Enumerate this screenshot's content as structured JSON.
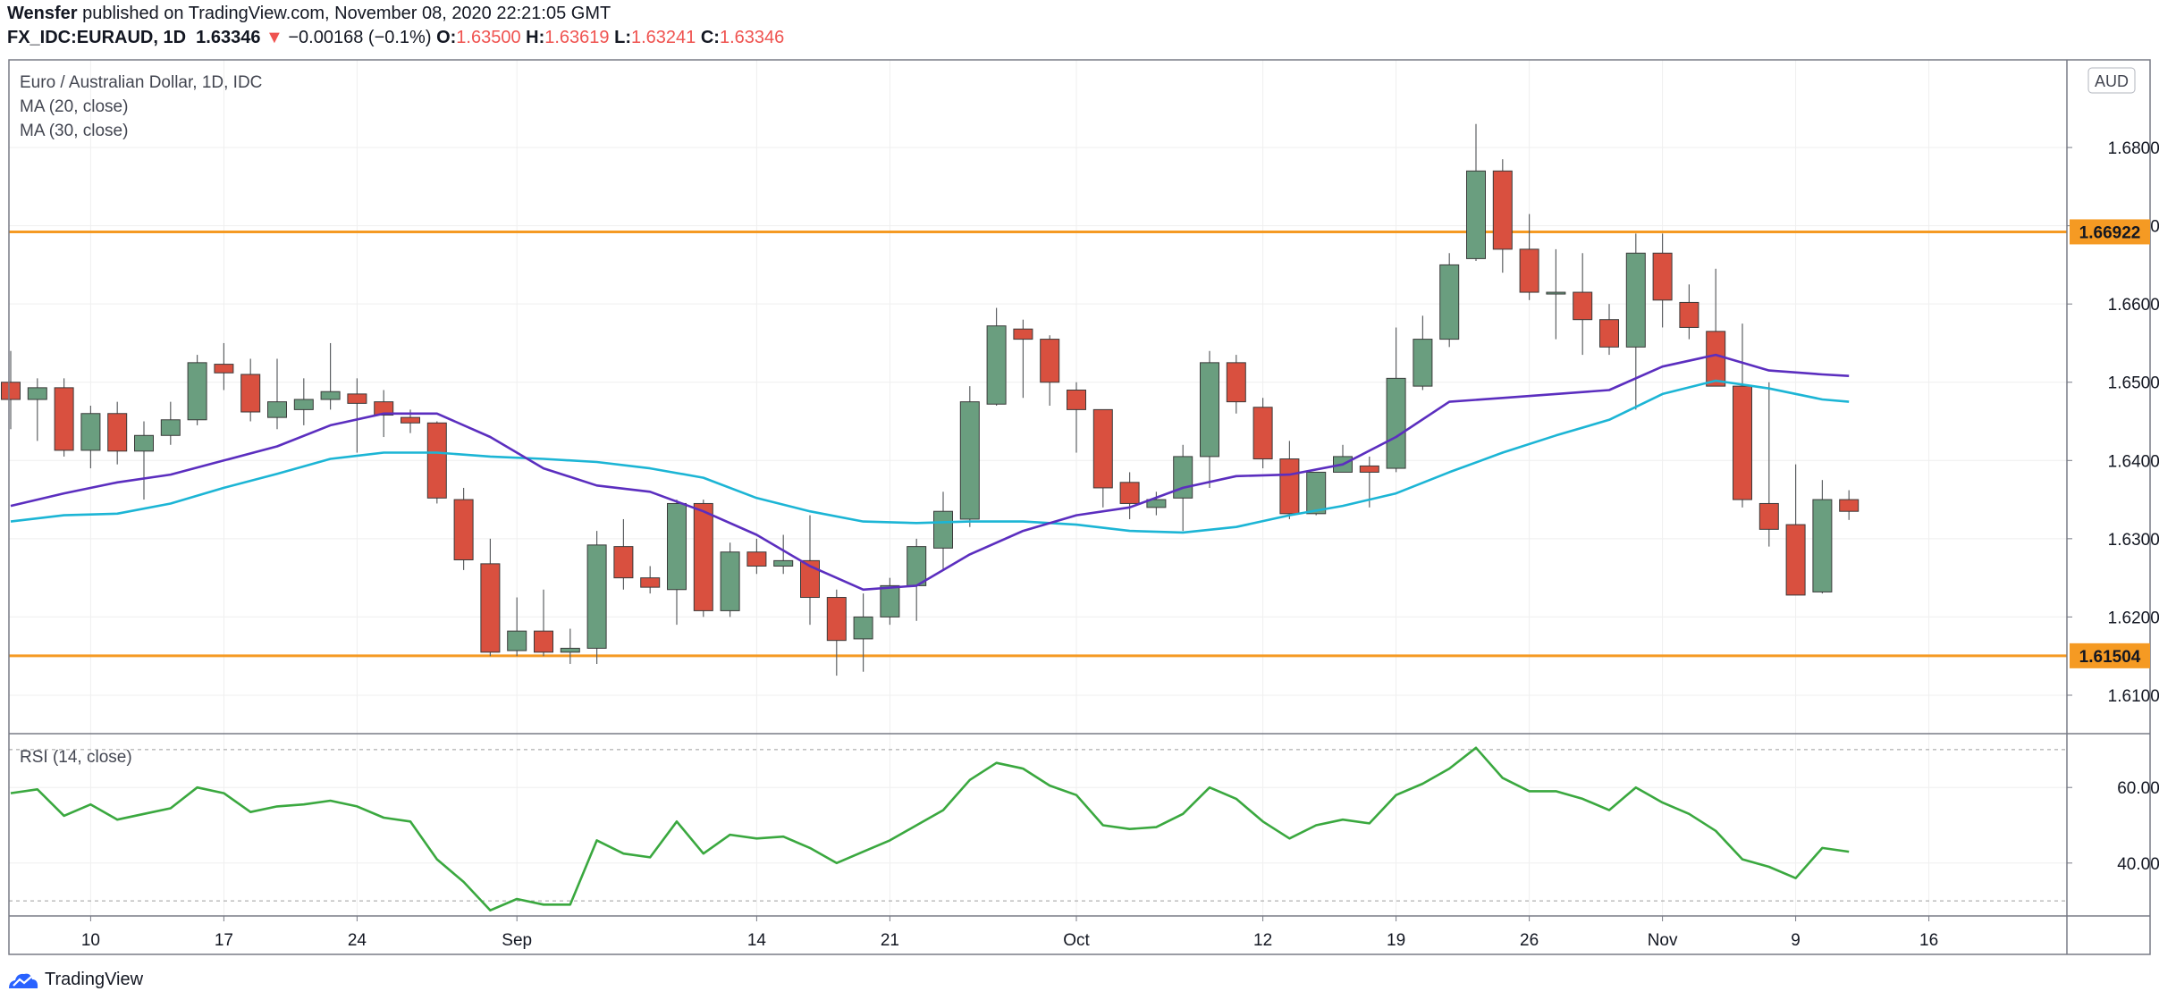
{
  "header": {
    "author": "Wensfer",
    "published_text": "published on TradingView.com, November 08, 2020 22:21:05 GMT",
    "symbol": "FX_IDC:EURAUD, 1D",
    "last": "1.63346",
    "arrow": "▼",
    "change": "−0.00168 (−0.1%)",
    "o_label": "O:",
    "o": "1.63500",
    "h_label": "H:",
    "h": "1.63619",
    "l_label": "L:",
    "l": "1.63241",
    "c_label": "C:",
    "c": "1.63346"
  },
  "legend": {
    "title": "Euro / Australian Dollar, 1D, IDC",
    "ma20": "MA (20, close)",
    "ma30": "MA (30, close)",
    "rsi": "RSI (14, close)"
  },
  "footer": {
    "brand": "TradingView"
  },
  "colors": {
    "up": "#6a9e7f",
    "down": "#d9503f",
    "ma20": "#5b2ebf",
    "ma30": "#1cb5d5",
    "rsi": "#3aa83f",
    "level": "#f59a23",
    "grid": "#efefef"
  },
  "chart_data": [
    {
      "type": "candlestick",
      "currency": "AUD",
      "x_labels": [
        {
          "i": 3,
          "label": "10"
        },
        {
          "i": 8,
          "label": "17"
        },
        {
          "i": 13,
          "label": "24"
        },
        {
          "i": 19,
          "label": "Sep"
        },
        {
          "i": 28,
          "label": "14"
        },
        {
          "i": 33,
          "label": "21"
        },
        {
          "i": 40,
          "label": "Oct"
        },
        {
          "i": 47,
          "label": "12"
        },
        {
          "i": 52,
          "label": "19"
        },
        {
          "i": 57,
          "label": "26"
        },
        {
          "i": 62,
          "label": "Nov"
        },
        {
          "i": 67,
          "label": "9"
        },
        {
          "i": 72,
          "label": "16"
        }
      ],
      "y_ticks": [
        "1.61000",
        "1.62000",
        "1.63000",
        "1.64000",
        "1.65000",
        "1.66000",
        "1.67000",
        "1.68000"
      ],
      "ylim": [
        1.6052,
        1.6912
      ],
      "horizontal_levels": [
        {
          "value": 1.66922,
          "label": "1.66922"
        },
        {
          "value": 1.61504,
          "label": "1.61504"
        }
      ],
      "candles": [
        {
          "i": 0,
          "o": 1.65,
          "h": 1.654,
          "l": 1.644,
          "c": 1.6478
        },
        {
          "i": 1,
          "o": 1.6478,
          "h": 1.6505,
          "l": 1.6425,
          "c": 1.6493
        },
        {
          "i": 2,
          "o": 1.6493,
          "h": 1.6505,
          "l": 1.6405,
          "c": 1.6413
        },
        {
          "i": 3,
          "o": 1.6413,
          "h": 1.647,
          "l": 1.639,
          "c": 1.646
        },
        {
          "i": 4,
          "o": 1.646,
          "h": 1.6475,
          "l": 1.6395,
          "c": 1.6412
        },
        {
          "i": 5,
          "o": 1.6412,
          "h": 1.645,
          "l": 1.635,
          "c": 1.6432
        },
        {
          "i": 6,
          "o": 1.6432,
          "h": 1.6475,
          "l": 1.642,
          "c": 1.6452
        },
        {
          "i": 7,
          "o": 1.6452,
          "h": 1.6535,
          "l": 1.6445,
          "c": 1.6525
        },
        {
          "i": 8,
          "o": 1.6523,
          "h": 1.655,
          "l": 1.649,
          "c": 1.6512
        },
        {
          "i": 9,
          "o": 1.651,
          "h": 1.653,
          "l": 1.645,
          "c": 1.6462
        },
        {
          "i": 10,
          "o": 1.6455,
          "h": 1.653,
          "l": 1.644,
          "c": 1.6475
        },
        {
          "i": 11,
          "o": 1.6465,
          "h": 1.6505,
          "l": 1.6445,
          "c": 1.6478
        },
        {
          "i": 12,
          "o": 1.6478,
          "h": 1.655,
          "l": 1.6465,
          "c": 1.6488
        },
        {
          "i": 13,
          "o": 1.6485,
          "h": 1.6505,
          "l": 1.641,
          "c": 1.6473
        },
        {
          "i": 14,
          "o": 1.6475,
          "h": 1.649,
          "l": 1.643,
          "c": 1.6458
        },
        {
          "i": 15,
          "o": 1.6455,
          "h": 1.6465,
          "l": 1.6435,
          "c": 1.6448
        },
        {
          "i": 16,
          "o": 1.6448,
          "h": 1.645,
          "l": 1.6345,
          "c": 1.6352
        },
        {
          "i": 17,
          "o": 1.635,
          "h": 1.6365,
          "l": 1.626,
          "c": 1.6273
        },
        {
          "i": 18,
          "o": 1.6268,
          "h": 1.63,
          "l": 1.615,
          "c": 1.6155
        },
        {
          "i": 19,
          "o": 1.6157,
          "h": 1.6225,
          "l": 1.615,
          "c": 1.6182
        },
        {
          "i": 20,
          "o": 1.6182,
          "h": 1.6235,
          "l": 1.615,
          "c": 1.6155
        },
        {
          "i": 21,
          "o": 1.6155,
          "h": 1.6185,
          "l": 1.614,
          "c": 1.616
        },
        {
          "i": 22,
          "o": 1.616,
          "h": 1.631,
          "l": 1.614,
          "c": 1.6292
        },
        {
          "i": 23,
          "o": 1.629,
          "h": 1.6325,
          "l": 1.6235,
          "c": 1.625
        },
        {
          "i": 24,
          "o": 1.625,
          "h": 1.6265,
          "l": 1.623,
          "c": 1.6238
        },
        {
          "i": 25,
          "o": 1.6235,
          "h": 1.635,
          "l": 1.619,
          "c": 1.6345
        },
        {
          "i": 26,
          "o": 1.6345,
          "h": 1.635,
          "l": 1.62,
          "c": 1.6208
        },
        {
          "i": 27,
          "o": 1.6208,
          "h": 1.6295,
          "l": 1.62,
          "c": 1.6283
        },
        {
          "i": 28,
          "o": 1.6283,
          "h": 1.63,
          "l": 1.6255,
          "c": 1.6265
        },
        {
          "i": 29,
          "o": 1.6265,
          "h": 1.6305,
          "l": 1.6255,
          "c": 1.6272
        },
        {
          "i": 30,
          "o": 1.6272,
          "h": 1.633,
          "l": 1.619,
          "c": 1.6225
        },
        {
          "i": 31,
          "o": 1.6225,
          "h": 1.6235,
          "l": 1.6125,
          "c": 1.617
        },
        {
          "i": 32,
          "o": 1.6172,
          "h": 1.623,
          "l": 1.613,
          "c": 1.62
        },
        {
          "i": 33,
          "o": 1.62,
          "h": 1.625,
          "l": 1.619,
          "c": 1.624
        },
        {
          "i": 34,
          "o": 1.624,
          "h": 1.63,
          "l": 1.6195,
          "c": 1.629
        },
        {
          "i": 35,
          "o": 1.6288,
          "h": 1.636,
          "l": 1.626,
          "c": 1.6335
        },
        {
          "i": 36,
          "o": 1.6325,
          "h": 1.6495,
          "l": 1.6315,
          "c": 1.6475
        },
        {
          "i": 37,
          "o": 1.6472,
          "h": 1.6595,
          "l": 1.647,
          "c": 1.6572
        },
        {
          "i": 38,
          "o": 1.6568,
          "h": 1.658,
          "l": 1.648,
          "c": 1.6555
        },
        {
          "i": 39,
          "o": 1.6555,
          "h": 1.656,
          "l": 1.647,
          "c": 1.65
        },
        {
          "i": 40,
          "o": 1.649,
          "h": 1.65,
          "l": 1.641,
          "c": 1.6465
        },
        {
          "i": 41,
          "o": 1.6465,
          "h": 1.6465,
          "l": 1.634,
          "c": 1.6365
        },
        {
          "i": 42,
          "o": 1.6372,
          "h": 1.6385,
          "l": 1.6325,
          "c": 1.6345
        },
        {
          "i": 43,
          "o": 1.634,
          "h": 1.636,
          "l": 1.633,
          "c": 1.635
        },
        {
          "i": 44,
          "o": 1.6352,
          "h": 1.642,
          "l": 1.631,
          "c": 1.6405
        },
        {
          "i": 45,
          "o": 1.6405,
          "h": 1.654,
          "l": 1.6365,
          "c": 1.6525
        },
        {
          "i": 46,
          "o": 1.6525,
          "h": 1.6535,
          "l": 1.646,
          "c": 1.6475
        },
        {
          "i": 47,
          "o": 1.6468,
          "h": 1.648,
          "l": 1.639,
          "c": 1.6402
        },
        {
          "i": 48,
          "o": 1.6402,
          "h": 1.6425,
          "l": 1.6325,
          "c": 1.6332
        },
        {
          "i": 49,
          "o": 1.6332,
          "h": 1.6385,
          "l": 1.633,
          "c": 1.6385
        },
        {
          "i": 50,
          "o": 1.6385,
          "h": 1.642,
          "l": 1.6385,
          "c": 1.6405
        },
        {
          "i": 51,
          "o": 1.6393,
          "h": 1.6405,
          "l": 1.634,
          "c": 1.6385
        },
        {
          "i": 52,
          "o": 1.639,
          "h": 1.657,
          "l": 1.6385,
          "c": 1.6505
        },
        {
          "i": 53,
          "o": 1.6495,
          "h": 1.6585,
          "l": 1.649,
          "c": 1.6555
        },
        {
          "i": 54,
          "o": 1.6555,
          "h": 1.6665,
          "l": 1.6545,
          "c": 1.665
        },
        {
          "i": 55,
          "o": 1.6658,
          "h": 1.683,
          "l": 1.6655,
          "c": 1.677
        },
        {
          "i": 56,
          "o": 1.677,
          "h": 1.6785,
          "l": 1.664,
          "c": 1.667
        },
        {
          "i": 57,
          "o": 1.667,
          "h": 1.6715,
          "l": 1.6605,
          "c": 1.6615
        },
        {
          "i": 58,
          "o": 1.6615,
          "h": 1.667,
          "l": 1.6555,
          "c": 1.6615
        },
        {
          "i": 59,
          "o": 1.6615,
          "h": 1.6665,
          "l": 1.6535,
          "c": 1.658
        },
        {
          "i": 60,
          "o": 1.658,
          "h": 1.66,
          "l": 1.6535,
          "c": 1.6545
        },
        {
          "i": 61,
          "o": 1.6545,
          "h": 1.669,
          "l": 1.6465,
          "c": 1.6665
        },
        {
          "i": 62,
          "o": 1.6665,
          "h": 1.669,
          "l": 1.657,
          "c": 1.6605
        },
        {
          "i": 63,
          "o": 1.6602,
          "h": 1.6625,
          "l": 1.6555,
          "c": 1.657
        },
        {
          "i": 64,
          "o": 1.6565,
          "h": 1.6645,
          "l": 1.6495,
          "c": 1.6495
        },
        {
          "i": 65,
          "o": 1.6495,
          "h": 1.6575,
          "l": 1.634,
          "c": 1.635
        },
        {
          "i": 66,
          "o": 1.6345,
          "h": 1.65,
          "l": 1.629,
          "c": 1.6312
        },
        {
          "i": 67,
          "o": 1.6318,
          "h": 1.6395,
          "l": 1.6228,
          "c": 1.6228
        },
        {
          "i": 68,
          "o": 1.6232,
          "h": 1.6375,
          "l": 1.623,
          "c": 1.635
        },
        {
          "i": 69,
          "o": 1.635,
          "h": 1.6362,
          "l": 1.6324,
          "c": 1.6335
        }
      ],
      "ma20": [
        [
          0,
          1.6342
        ],
        [
          2,
          1.6358
        ],
        [
          4,
          1.6372
        ],
        [
          6,
          1.6382
        ],
        [
          8,
          1.64
        ],
        [
          10,
          1.6418
        ],
        [
          12,
          1.6445
        ],
        [
          14,
          1.646
        ],
        [
          16,
          1.646
        ],
        [
          18,
          1.643
        ],
        [
          20,
          1.639
        ],
        [
          22,
          1.6368
        ],
        [
          24,
          1.636
        ],
        [
          26,
          1.6335
        ],
        [
          28,
          1.6305
        ],
        [
          30,
          1.6265
        ],
        [
          32,
          1.6235
        ],
        [
          34,
          1.624
        ],
        [
          36,
          1.628
        ],
        [
          38,
          1.631
        ],
        [
          40,
          1.633
        ],
        [
          42,
          1.634
        ],
        [
          44,
          1.6365
        ],
        [
          46,
          1.638
        ],
        [
          48,
          1.6382
        ],
        [
          50,
          1.6395
        ],
        [
          52,
          1.643
        ],
        [
          54,
          1.6475
        ],
        [
          56,
          1.648
        ],
        [
          58,
          1.6485
        ],
        [
          60,
          1.649
        ],
        [
          62,
          1.652
        ],
        [
          64,
          1.6535
        ],
        [
          66,
          1.6515
        ],
        [
          68,
          1.651
        ],
        [
          69,
          1.6508
        ]
      ],
      "ma30": [
        [
          0,
          1.6322
        ],
        [
          2,
          1.633
        ],
        [
          4,
          1.6332
        ],
        [
          6,
          1.6345
        ],
        [
          8,
          1.6365
        ],
        [
          10,
          1.6383
        ],
        [
          12,
          1.6402
        ],
        [
          14,
          1.641
        ],
        [
          16,
          1.641
        ],
        [
          18,
          1.6405
        ],
        [
          20,
          1.6402
        ],
        [
          22,
          1.6398
        ],
        [
          24,
          1.639
        ],
        [
          26,
          1.6378
        ],
        [
          28,
          1.6352
        ],
        [
          30,
          1.6335
        ],
        [
          32,
          1.6322
        ],
        [
          34,
          1.632
        ],
        [
          36,
          1.6322
        ],
        [
          38,
          1.6322
        ],
        [
          40,
          1.6318
        ],
        [
          42,
          1.631
        ],
        [
          44,
          1.6308
        ],
        [
          46,
          1.6315
        ],
        [
          48,
          1.633
        ],
        [
          50,
          1.6342
        ],
        [
          52,
          1.6358
        ],
        [
          54,
          1.6385
        ],
        [
          56,
          1.641
        ],
        [
          58,
          1.6432
        ],
        [
          60,
          1.6452
        ],
        [
          62,
          1.6485
        ],
        [
          64,
          1.6502
        ],
        [
          66,
          1.6492
        ],
        [
          68,
          1.6478
        ],
        [
          69,
          1.6475
        ]
      ]
    },
    {
      "type": "line",
      "indicator": "RSI",
      "y_ticks": [
        "40.00",
        "60.00"
      ],
      "ylim": [
        26,
        74
      ],
      "bands": [
        30,
        70
      ],
      "values": [
        [
          0,
          58.5
        ],
        [
          1,
          59.5
        ],
        [
          2,
          52.5
        ],
        [
          3,
          55.5
        ],
        [
          4,
          51.5
        ],
        [
          5,
          53
        ],
        [
          6,
          54.5
        ],
        [
          7,
          60
        ],
        [
          8,
          58.5
        ],
        [
          9,
          53.5
        ],
        [
          10,
          55
        ],
        [
          11,
          55.5
        ],
        [
          12,
          56.5
        ],
        [
          13,
          55
        ],
        [
          14,
          52
        ],
        [
          15,
          51
        ],
        [
          16,
          41
        ],
        [
          17,
          35
        ],
        [
          18,
          27.5
        ],
        [
          19,
          30.5
        ],
        [
          20,
          29
        ],
        [
          21,
          29
        ],
        [
          22,
          46
        ],
        [
          23,
          42.5
        ],
        [
          24,
          41.5
        ],
        [
          25,
          51
        ],
        [
          26,
          42.5
        ],
        [
          27,
          47.5
        ],
        [
          28,
          46.5
        ],
        [
          29,
          47
        ],
        [
          30,
          44
        ],
        [
          31,
          40
        ],
        [
          32,
          43
        ],
        [
          33,
          46
        ],
        [
          34,
          50
        ],
        [
          35,
          54
        ],
        [
          36,
          62
        ],
        [
          37,
          66.5
        ],
        [
          38,
          65
        ],
        [
          39,
          60.5
        ],
        [
          40,
          58
        ],
        [
          41,
          50
        ],
        [
          42,
          49
        ],
        [
          43,
          49.5
        ],
        [
          44,
          53
        ],
        [
          45,
          60
        ],
        [
          46,
          57
        ],
        [
          47,
          51
        ],
        [
          48,
          46.5
        ],
        [
          49,
          50
        ],
        [
          50,
          51.5
        ],
        [
          51,
          50.5
        ],
        [
          52,
          58
        ],
        [
          53,
          61
        ],
        [
          54,
          65
        ],
        [
          55,
          70.5
        ],
        [
          56,
          62.5
        ],
        [
          57,
          59
        ],
        [
          58,
          59
        ],
        [
          59,
          57
        ],
        [
          60,
          54
        ],
        [
          61,
          60
        ],
        [
          62,
          56
        ],
        [
          63,
          53
        ],
        [
          64,
          48.5
        ],
        [
          65,
          41
        ],
        [
          66,
          39
        ],
        [
          67,
          36
        ],
        [
          68,
          44
        ],
        [
          69,
          43
        ]
      ]
    }
  ]
}
